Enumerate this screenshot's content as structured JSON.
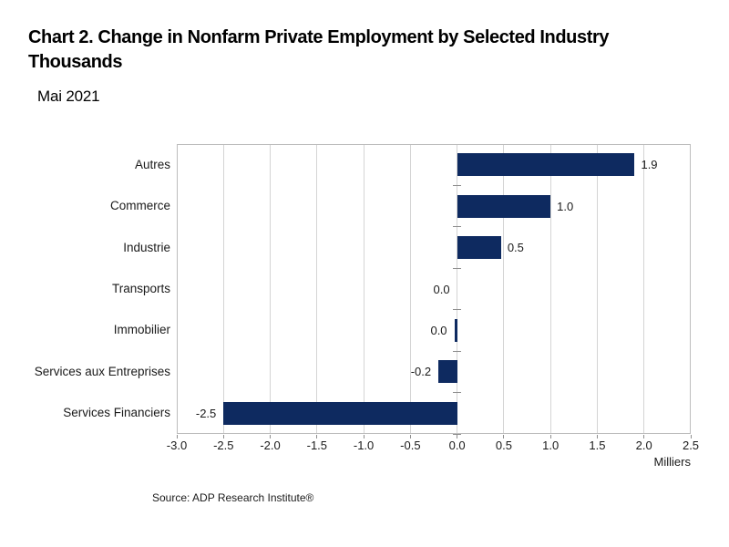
{
  "header": {
    "title_line1": "Chart 2. Change in Nonfarm Private Employment by Selected Industry",
    "title_line2": "Thousands",
    "subtitle": "Mai 2021"
  },
  "chart_data": {
    "type": "bar",
    "orientation": "horizontal",
    "title": "Chart 2. Change in Nonfarm Private Employment by Selected Industry Thousands",
    "subtitle": "Mai 2021",
    "categories": [
      "Autres",
      "Commerce",
      "Industrie",
      "Transports",
      "Immobilier",
      "Services aux Entreprises",
      "Services Financiers"
    ],
    "values": [
      1.9,
      1.0,
      0.5,
      0.0,
      0.0,
      -0.2,
      -2.5
    ],
    "value_labels": [
      "1.9",
      "1.0",
      "0.5",
      "0.0",
      "0.0",
      "-0.2",
      "-2.5"
    ],
    "drawn_values": [
      1.9,
      1.0,
      0.47,
      0.0,
      -0.03,
      -0.2,
      -2.5
    ],
    "xlabel": "Milliers",
    "ylabel": "",
    "xlim": [
      -3.0,
      2.5
    ],
    "xticks": [
      -3.0,
      -2.5,
      -2.0,
      -1.5,
      -1.0,
      -0.5,
      0.0,
      0.5,
      1.0,
      1.5,
      2.0,
      2.5
    ],
    "xtick_labels": [
      "-3.0",
      "-2.5",
      "-2.0",
      "-1.5",
      "-1.0",
      "-0.5",
      "0.0",
      "0.5",
      "1.0",
      "1.5",
      "2.0",
      "2.5"
    ],
    "grid": true,
    "legend": "none",
    "bar_color": "#0e2a60",
    "gridline_color": "#d4d4d4",
    "border_color": "#bdbdbd",
    "tick_color": "#8f8f8f"
  },
  "footer": {
    "source": "Source: ADP Research Institute®"
  }
}
